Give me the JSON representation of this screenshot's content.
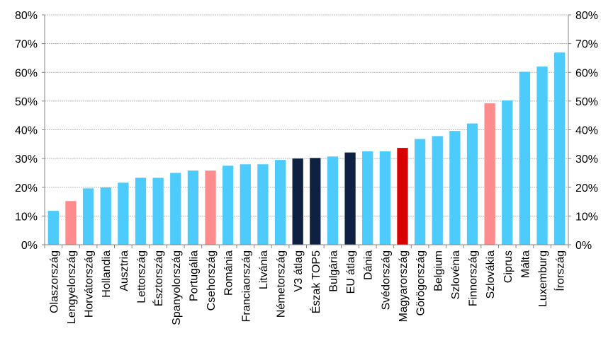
{
  "chart_data": {
    "type": "bar",
    "title": "",
    "xlabel": "",
    "ylabel": "",
    "ylim": [
      0,
      80
    ],
    "yticks": [
      "0%",
      "10%",
      "20%",
      "30%",
      "40%",
      "50%",
      "60%",
      "70%",
      "80%"
    ],
    "y_axes": "left-and-right",
    "grid": true,
    "categories": [
      "Olaszország",
      "Lengyelország",
      "Horvátország",
      "Hollandia",
      "Ausztria",
      "Lettország",
      "Észtország",
      "Spanyolország",
      "Portugália",
      "Csehország",
      "Románia",
      "Franciaország",
      "Litvánia",
      "Németország",
      "V3 átlag",
      "Észak TOP5",
      "Bulgária",
      "EU átlag",
      "Dánia",
      "Svédország",
      "Magyarország",
      "Görögország",
      "Belgium",
      "Szlovénia",
      "Finnország",
      "Szlovákia",
      "Ciprus",
      "Málta",
      "Luxemburg",
      "Írország"
    ],
    "values": [
      11.8,
      15.2,
      19.6,
      19.9,
      21.6,
      23.3,
      23.3,
      25.0,
      25.8,
      25.8,
      27.5,
      28.0,
      28.0,
      29.5,
      30.0,
      30.2,
      30.7,
      32.1,
      32.5,
      32.5,
      33.7,
      36.8,
      37.8,
      39.6,
      42.2,
      49.2,
      50.2,
      60.2,
      62.0,
      66.9
    ],
    "colors": [
      "#4dcbfc",
      "#ff8c8c",
      "#4dcbfc",
      "#4dcbfc",
      "#4dcbfc",
      "#4dcbfc",
      "#4dcbfc",
      "#4dcbfc",
      "#4dcbfc",
      "#ff8c8c",
      "#4dcbfc",
      "#4dcbfc",
      "#4dcbfc",
      "#4dcbfc",
      "#0f2143",
      "#0f2143",
      "#4dcbfc",
      "#0f2143",
      "#4dcbfc",
      "#4dcbfc",
      "#d90000",
      "#4dcbfc",
      "#4dcbfc",
      "#4dcbfc",
      "#4dcbfc",
      "#ff8c8c",
      "#4dcbfc",
      "#4dcbfc",
      "#4dcbfc",
      "#4dcbfc"
    ]
  }
}
